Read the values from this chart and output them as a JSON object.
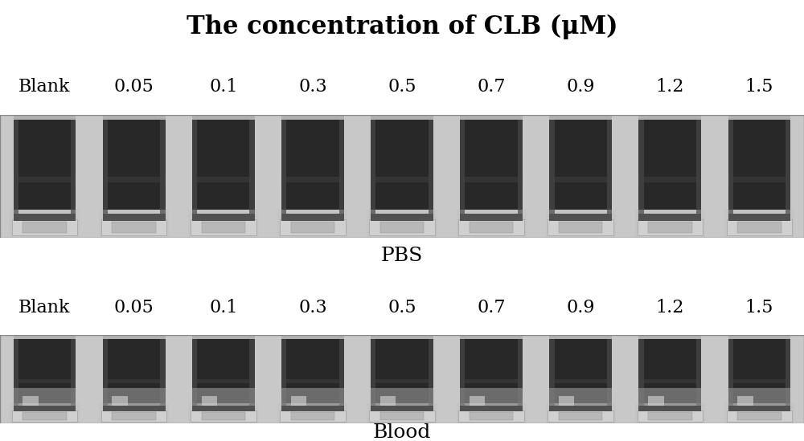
{
  "title": "The concentration of CLB (μM)",
  "title_fontsize": 22,
  "title_fontweight": "bold",
  "labels": [
    "Blank",
    "0.05",
    "0.1",
    "0.3",
    "0.5",
    "0.7",
    "0.9",
    "1.2",
    "1.5"
  ],
  "row_labels": [
    "PBS",
    "Blood"
  ],
  "label_fontsize": 16,
  "row_label_fontsize": 18,
  "n_vials": 9,
  "figure_bg": "#ffffff",
  "panel_bg": "#b8b8b8",
  "figsize": [
    10.0,
    5.49
  ],
  "dpi": 100
}
